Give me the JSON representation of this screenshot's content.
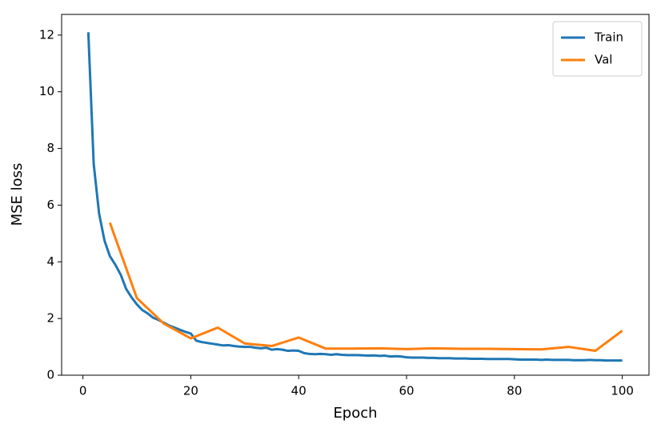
{
  "chart_data": {
    "type": "line",
    "xlabel": "Epoch",
    "ylabel": "MSE loss",
    "xlim": [
      -3.95,
      104.95
    ],
    "ylim": [
      0,
      12.73
    ],
    "xticks": [
      0,
      20,
      40,
      60,
      80,
      100
    ],
    "yticks": [
      0,
      2,
      4,
      6,
      8,
      10,
      12
    ],
    "legend": "upper right",
    "series": [
      {
        "name": "Train",
        "color": "#1f77b4",
        "x": [
          1,
          2,
          3,
          4,
          5,
          6,
          7,
          8,
          9,
          10,
          11,
          12,
          13,
          14,
          15,
          16,
          17,
          18,
          19,
          20,
          21,
          22,
          23,
          24,
          25,
          26,
          27,
          28,
          29,
          30,
          31,
          32,
          33,
          34,
          35,
          36,
          37,
          38,
          39,
          40,
          41,
          42,
          43,
          44,
          45,
          46,
          47,
          48,
          49,
          50,
          51,
          52,
          53,
          54,
          55,
          56,
          57,
          58,
          59,
          60,
          61,
          62,
          63,
          64,
          65,
          66,
          67,
          68,
          69,
          70,
          71,
          72,
          73,
          74,
          75,
          76,
          77,
          78,
          79,
          80,
          81,
          82,
          83,
          84,
          85,
          86,
          87,
          88,
          89,
          90,
          91,
          92,
          93,
          94,
          95,
          96,
          97,
          98,
          99,
          100
        ],
        "values": [
          12.1,
          7.45,
          5.7,
          4.75,
          4.2,
          3.9,
          3.55,
          3.05,
          2.75,
          2.5,
          2.3,
          2.18,
          2.03,
          1.95,
          1.85,
          1.75,
          1.68,
          1.6,
          1.53,
          1.47,
          1.22,
          1.17,
          1.14,
          1.11,
          1.08,
          1.05,
          1.06,
          1.03,
          1.01,
          1.0,
          1.0,
          0.97,
          0.95,
          0.97,
          0.9,
          0.92,
          0.9,
          0.86,
          0.87,
          0.86,
          0.78,
          0.75,
          0.74,
          0.75,
          0.74,
          0.72,
          0.74,
          0.72,
          0.71,
          0.71,
          0.71,
          0.7,
          0.69,
          0.7,
          0.68,
          0.69,
          0.66,
          0.67,
          0.66,
          0.63,
          0.62,
          0.62,
          0.62,
          0.61,
          0.61,
          0.6,
          0.6,
          0.6,
          0.59,
          0.59,
          0.59,
          0.58,
          0.58,
          0.58,
          0.57,
          0.57,
          0.57,
          0.57,
          0.57,
          0.56,
          0.55,
          0.55,
          0.55,
          0.55,
          0.54,
          0.55,
          0.54,
          0.54,
          0.54,
          0.54,
          0.53,
          0.53,
          0.53,
          0.54,
          0.53,
          0.53,
          0.52,
          0.52,
          0.52,
          0.52
        ]
      },
      {
        "name": "Val",
        "color": "#ff7f0e",
        "x": [
          5,
          10,
          15,
          20,
          25,
          30,
          35,
          40,
          45,
          50,
          55,
          60,
          65,
          70,
          75,
          80,
          85,
          90,
          95,
          100
        ],
        "values": [
          5.38,
          2.72,
          1.82,
          1.3,
          1.68,
          1.12,
          1.03,
          1.33,
          0.94,
          0.94,
          0.95,
          0.92,
          0.95,
          0.93,
          0.93,
          0.92,
          0.91,
          1.0,
          0.86,
          1.57
        ]
      }
    ]
  }
}
